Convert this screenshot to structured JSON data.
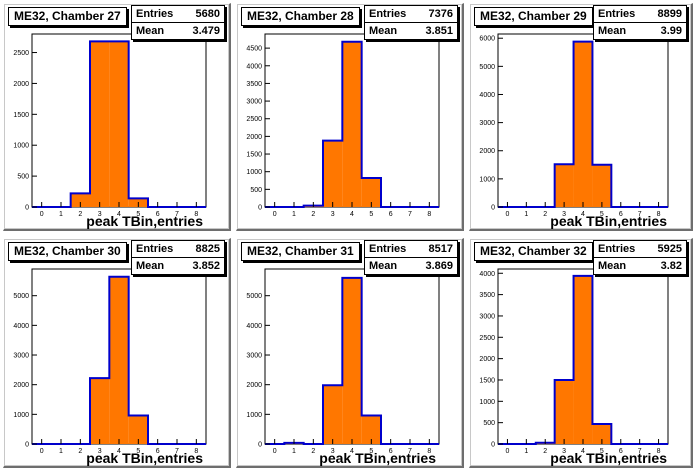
{
  "chart_data": [
    {
      "type": "bar",
      "title": "ME32, Chamber 27",
      "stats": {
        "entries_label": "Entries",
        "entries": "5680",
        "mean_label": "Mean",
        "mean": "3.479"
      },
      "xlabel": "peak TBin,entries",
      "bin_edges": [
        -0.5,
        0.5,
        1.5,
        2.5,
        3.5,
        4.5,
        5.5,
        6.5,
        7.5,
        8.5
      ],
      "xticks": [
        0,
        1,
        2,
        3,
        4,
        5,
        6,
        7,
        8
      ],
      "xlim": [
        -0.5,
        8.5
      ],
      "values": [
        0,
        0,
        220,
        2680,
        2680,
        140,
        0,
        0,
        0
      ],
      "ylim": [
        0,
        2800
      ],
      "yticks": [
        0,
        500,
        1000,
        1500,
        2000,
        2500
      ]
    },
    {
      "type": "bar",
      "title": "ME32, Chamber 28",
      "stats": {
        "entries_label": "Entries",
        "entries": "7376",
        "mean_label": "Mean",
        "mean": "3.851"
      },
      "xlabel": "",
      "bin_edges": [
        -0.5,
        0.5,
        1.5,
        2.5,
        3.5,
        4.5,
        5.5,
        6.5,
        7.5,
        8.5
      ],
      "xticks": [
        0,
        1,
        2,
        3,
        4,
        5,
        6,
        7,
        8
      ],
      "xlim": [
        -0.5,
        8.5
      ],
      "values": [
        0,
        0,
        40,
        1880,
        4680,
        820,
        0,
        0,
        0
      ],
      "ylim": [
        0,
        4900
      ],
      "yticks": [
        0,
        500,
        1000,
        1500,
        2000,
        2500,
        3000,
        3500,
        4000,
        4500
      ]
    },
    {
      "type": "bar",
      "title": "ME32, Chamber 29",
      "stats": {
        "entries_label": "Entries",
        "entries": "8899",
        "mean_label": "Mean",
        "mean": "3.99"
      },
      "xlabel": "peak TBin,entries",
      "bin_edges": [
        -0.5,
        0.5,
        1.5,
        2.5,
        3.5,
        4.5,
        5.5,
        6.5,
        7.5,
        8.5
      ],
      "xticks": [
        0,
        1,
        2,
        3,
        4,
        5,
        6,
        7,
        8
      ],
      "xlim": [
        -0.5,
        8.5
      ],
      "values": [
        0,
        0,
        0,
        1520,
        5880,
        1500,
        0,
        0,
        0
      ],
      "ylim": [
        0,
        6150
      ],
      "yticks": [
        0,
        1000,
        2000,
        3000,
        4000,
        5000,
        6000
      ]
    },
    {
      "type": "bar",
      "title": "ME32, Chamber 30",
      "stats": {
        "entries_label": "Entries",
        "entries": "8825",
        "mean_label": "Mean",
        "mean": "3.852"
      },
      "xlabel": "peak TBin,entries",
      "bin_edges": [
        -0.5,
        0.5,
        1.5,
        2.5,
        3.5,
        4.5,
        5.5,
        6.5,
        7.5,
        8.5
      ],
      "xticks": [
        0,
        1,
        2,
        3,
        4,
        5,
        6,
        7,
        8
      ],
      "xlim": [
        -0.5,
        8.5
      ],
      "values": [
        0,
        0,
        0,
        2220,
        5640,
        960,
        0,
        0,
        0
      ],
      "ylim": [
        0,
        5900
      ],
      "yticks": [
        0,
        1000,
        2000,
        3000,
        4000,
        5000
      ]
    },
    {
      "type": "bar",
      "title": "ME32, Chamber 31",
      "stats": {
        "entries_label": "Entries",
        "entries": "8517",
        "mean_label": "Mean",
        "mean": "3.869"
      },
      "xlabel": "peak TBin,entries",
      "bin_edges": [
        -0.5,
        0.5,
        1.5,
        2.5,
        3.5,
        4.5,
        5.5,
        6.5,
        7.5,
        8.5
      ],
      "xticks": [
        0,
        1,
        2,
        3,
        4,
        5,
        6,
        7,
        8
      ],
      "xlim": [
        -0.5,
        8.5
      ],
      "values": [
        0,
        40,
        0,
        1980,
        5600,
        960,
        0,
        0,
        0
      ],
      "ylim": [
        0,
        5900
      ],
      "yticks": [
        0,
        1000,
        2000,
        3000,
        4000,
        5000
      ]
    },
    {
      "type": "bar",
      "title": "ME32, Chamber 32",
      "stats": {
        "entries_label": "Entries",
        "entries": "5925",
        "mean_label": "Mean",
        "mean": "3.82"
      },
      "xlabel": "peak TBin,entries",
      "bin_edges": [
        -0.5,
        0.5,
        1.5,
        2.5,
        3.5,
        4.5,
        5.5,
        6.5,
        7.5,
        8.5
      ],
      "xticks": [
        0,
        1,
        2,
        3,
        4,
        5,
        6,
        7,
        8
      ],
      "xlim": [
        -0.5,
        8.5
      ],
      "values": [
        0,
        0,
        30,
        1500,
        3940,
        470,
        0,
        0,
        0
      ],
      "ylim": [
        0,
        4100
      ],
      "yticks": [
        0,
        500,
        1000,
        1500,
        2000,
        2500,
        3000,
        3500,
        4000
      ]
    }
  ],
  "colors": {
    "fill": "#ff7700",
    "line": "#0000cc",
    "axis": "#000000",
    "frame_shadow": "#6e6e6e"
  }
}
